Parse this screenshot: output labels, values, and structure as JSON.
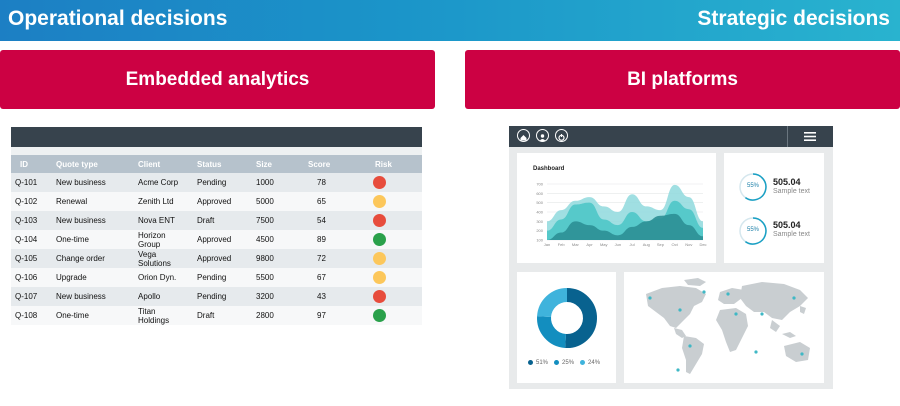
{
  "header": {
    "left_title": "Operational decisions",
    "right_title": "Strategic decisions"
  },
  "sections": {
    "left": "Embedded analytics",
    "right": "BI platforms"
  },
  "table": {
    "columns": [
      "ID",
      "Quote type",
      "Client",
      "Status",
      "Size",
      "Score",
      "Risk"
    ],
    "rows": [
      {
        "id": "Q-101",
        "type": "New business",
        "client": "Acme Corp",
        "status": "Pending",
        "size": "1000",
        "score": "78",
        "risk": "red"
      },
      {
        "id": "Q-102",
        "type": "Renewal",
        "client": "Zenith Ltd",
        "status": "Approved",
        "size": "5000",
        "score": "65",
        "risk": "yellow"
      },
      {
        "id": "Q-103",
        "type": "New business",
        "client": "Nova ENT",
        "status": "Draft",
        "size": "7500",
        "score": "54",
        "risk": "red"
      },
      {
        "id": "Q-104",
        "type": "One-time",
        "client": "Horizon Group",
        "status": "Approved",
        "size": "4500",
        "score": "89",
        "risk": "green"
      },
      {
        "id": "Q-105",
        "type": "Change order",
        "client": "Vega Solutions",
        "status": "Approved",
        "size": "9800",
        "score": "72",
        "risk": "yellow"
      },
      {
        "id": "Q-106",
        "type": "Upgrade",
        "client": "Orion Dyn.",
        "status": "Pending",
        "size": "5500",
        "score": "67",
        "risk": "yellow"
      },
      {
        "id": "Q-107",
        "type": "New business",
        "client": "Apollo",
        "status": "Pending",
        "size": "3200",
        "score": "43",
        "risk": "red"
      },
      {
        "id": "Q-108",
        "type": "One-time",
        "client": "Titan Holdings",
        "status": "Draft",
        "size": "2800",
        "score": "97",
        "risk": "green"
      }
    ],
    "risk_colors": {
      "red": "#e74c3c",
      "yellow": "#fcc75b",
      "green": "#2aa14b"
    }
  },
  "dashboard": {
    "nav_icons": [
      "home-icon",
      "user-icon",
      "power-icon"
    ],
    "menu_icon": "hamburger-menu-icon",
    "area_chart": {
      "title": "Dashboard",
      "y_ticks": [
        "700",
        "600",
        "500",
        "400",
        "300",
        "200",
        "100"
      ],
      "x_ticks": [
        "Jan",
        "Feb",
        "Mar",
        "Apr",
        "May",
        "Jun",
        "Jul",
        "Aug",
        "Sep",
        "Oct",
        "Nov",
        "Dec"
      ]
    },
    "stats": [
      {
        "ring": "55%",
        "value": "505.04",
        "label": "Sample text"
      },
      {
        "ring": "55%",
        "value": "505.04",
        "label": "Sample text"
      }
    ],
    "donut": {
      "legend": [
        {
          "label": "51%",
          "color": "#08628f"
        },
        {
          "label": "25%",
          "color": "#138ebf"
        },
        {
          "label": "24%",
          "color": "#3fb3dc"
        }
      ]
    }
  },
  "chart_data": [
    {
      "type": "area",
      "title": "Dashboard",
      "categories": [
        "Jan",
        "Feb",
        "Mar",
        "Apr",
        "May",
        "Jun",
        "Jul",
        "Aug",
        "Sep",
        "Oct",
        "Nov",
        "Dec"
      ],
      "ylim": [
        100,
        700
      ],
      "series": [
        {
          "color": "#8fd9dd",
          "values": [
            300,
            420,
            520,
            560,
            460,
            400,
            590,
            460,
            420,
            690,
            560,
            300
          ]
        },
        {
          "color": "#4ec7c8",
          "values": [
            200,
            320,
            480,
            500,
            320,
            260,
            400,
            300,
            330,
            520,
            430,
            230
          ]
        },
        {
          "color": "#2c8f95",
          "values": [
            100,
            180,
            300,
            260,
            200,
            150,
            240,
            300,
            360,
            380,
            260,
            140
          ]
        }
      ]
    },
    {
      "type": "pie",
      "series": [
        {
          "name": "51%",
          "value": 51,
          "color": "#08628f"
        },
        {
          "name": "25%",
          "value": 25,
          "color": "#138ebf"
        },
        {
          "name": "24%",
          "value": 24,
          "color": "#3fb3dc"
        }
      ]
    }
  ]
}
